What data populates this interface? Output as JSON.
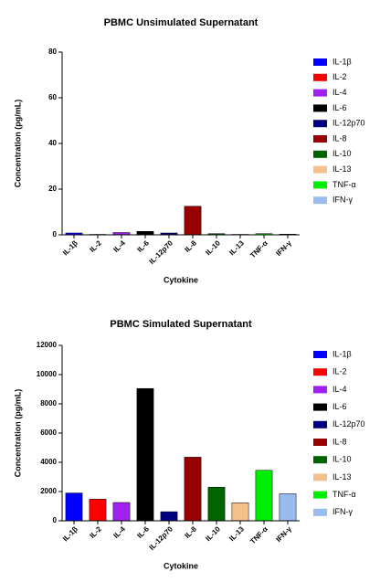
{
  "chart_data": [
    {
      "type": "bar",
      "title": "PBMC Unsimulated Supernatant",
      "x_label": "Cytokine",
      "y_label": "Concentration (pg/mL)",
      "categories": [
        "IL-1β",
        "IL-2",
        "IL-4",
        "IL-6",
        "IL-12p70",
        "IL-8",
        "IL-10",
        "IL-13",
        "TNF-α",
        "IFN-γ"
      ],
      "values": [
        0.8,
        0.2,
        1.0,
        1.5,
        0.8,
        12.5,
        0.5,
        0.2,
        0.5,
        0.3
      ],
      "colors": [
        "#0000ff",
        "#ff0000",
        "#a020f0",
        "#000000",
        "#000080",
        "#990000",
        "#006400",
        "#f4c08c",
        "#00ee00",
        "#99bbee"
      ],
      "ylim": [
        0,
        80
      ],
      "yticks": [
        0,
        20,
        40,
        60,
        80
      ],
      "legend": "right"
    },
    {
      "type": "bar",
      "title": "PBMC Simulated Supernatant",
      "x_label": "Cytokine",
      "y_label": "Concentration (pg/mL)",
      "categories": [
        "IL-1β",
        "IL-2",
        "IL-4",
        "IL-6",
        "IL-12p70",
        "IL-8",
        "IL-10",
        "IL-13",
        "TNF-α",
        "IFN-γ"
      ],
      "values": [
        1900,
        1480,
        1250,
        9050,
        620,
        4350,
        2300,
        1230,
        3450,
        1850
      ],
      "colors": [
        "#0000ff",
        "#ff0000",
        "#a020f0",
        "#000000",
        "#000080",
        "#990000",
        "#006400",
        "#f4c08c",
        "#00ee00",
        "#99bbee"
      ],
      "ylim": [
        0,
        12000
      ],
      "yticks": [
        0,
        2000,
        4000,
        6000,
        8000,
        10000,
        12000
      ],
      "legend": "right"
    }
  ]
}
